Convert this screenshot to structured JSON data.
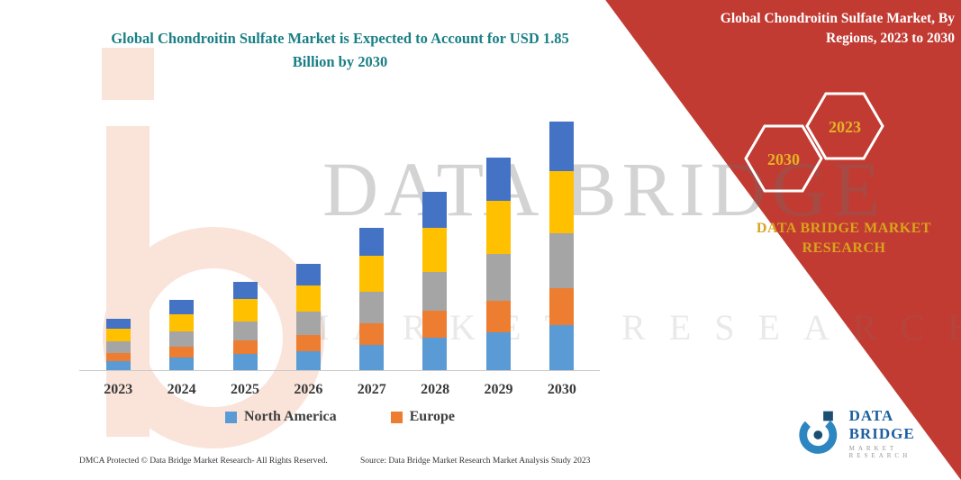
{
  "chart_title": "Global Chondroitin Sulfate Market is Expected to Account for USD 1.85 Billion by 2030",
  "banner": {
    "title": "Global Chondroitin Sulfate Market, By Regions, 2023 to 2030",
    "hexagon_left": "2030",
    "hexagon_right": "2023",
    "brand": "DATA BRIDGE MARKET RESEARCH",
    "background_color": "#C13B33",
    "gold_color": "#D9A41B"
  },
  "watermark": {
    "line1": "DATA BRIDGE",
    "line2": "MARKET RESEARCH"
  },
  "chart_data": {
    "type": "bar",
    "stacked": true,
    "categories": [
      "2023",
      "2024",
      "2025",
      "2026",
      "2027",
      "2028",
      "2029",
      "2030"
    ],
    "series": [
      {
        "name": "North America",
        "color": "#5B9BD5",
        "values": [
          10,
          14,
          18,
          21,
          28,
          36,
          42,
          50
        ]
      },
      {
        "name": "Europe",
        "color": "#ED7D31",
        "values": [
          9,
          12,
          15,
          18,
          24,
          30,
          35,
          41
        ]
      },
      {
        "name": "unlabeled-gray",
        "color": "#A5A5A5",
        "values": [
          13,
          17,
          21,
          26,
          35,
          43,
          52,
          61
        ]
      },
      {
        "name": "unlabeled-yellow",
        "color": "#FFC000",
        "values": [
          14,
          19,
          25,
          29,
          40,
          49,
          59,
          69
        ]
      },
      {
        "name": "unlabeled-dark-blue",
        "color": "#4472C4",
        "values": [
          11,
          16,
          19,
          24,
          31,
          40,
          48,
          55
        ]
      }
    ],
    "title": "Global Chondroitin Sulfate Market is Expected to Account for USD 1.85 Billion by 2030",
    "xlabel": "",
    "ylabel": "",
    "ylim": [
      0,
      280
    ],
    "grid": false,
    "legend_position": "bottom",
    "legend_visible_entries": [
      "North America",
      "Europe"
    ]
  },
  "legend": [
    {
      "label": "North America",
      "color": "#5B9BD5"
    },
    {
      "label": "Europe",
      "color": "#ED7D31"
    }
  ],
  "footer": {
    "left": "DMCA Protected © Data Bridge Market Research-  All Rights Reserved.",
    "source": "Source: Data Bridge Market Research  Market Analysis Study 2023"
  },
  "logo": {
    "name": "DATA BRIDGE",
    "subtitle": "MARKET RESEARCH"
  }
}
